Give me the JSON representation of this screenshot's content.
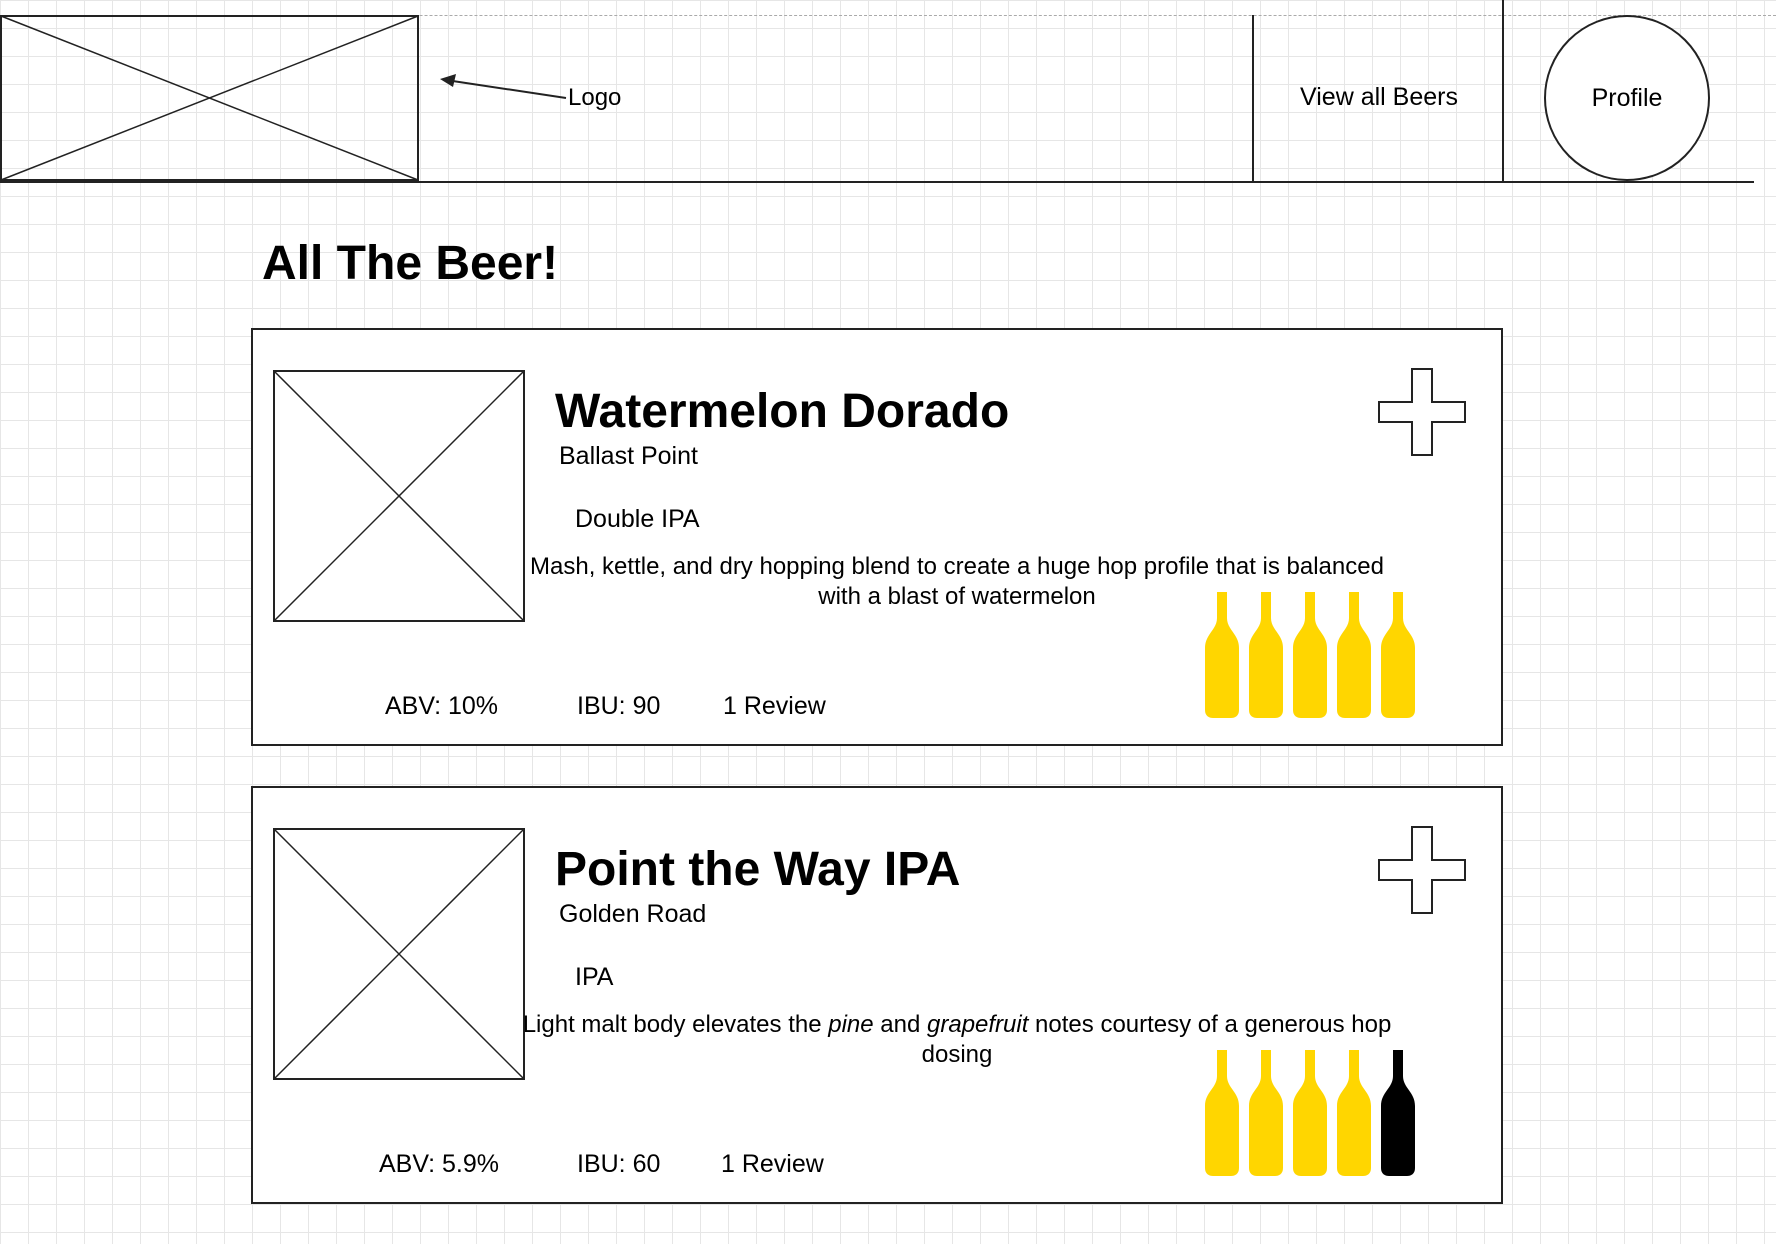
{
  "header": {
    "logo_label": "Logo",
    "nav_link": "View all Beers",
    "profile_label": "Profile"
  },
  "page": {
    "title": "All The Beer!"
  },
  "colors": {
    "rating_filled": "#FFD600",
    "rating_empty": "#000000",
    "grid": "#e6e6e6"
  },
  "beers": [
    {
      "name": "Watermelon Dorado",
      "brewery": "Ballast Point",
      "style": "Double IPA",
      "description": "Mash, kettle, and dry hopping blend to create a huge hop profile that is balanced with a blast of watermelon",
      "abv": "ABV: 10%",
      "ibu": "IBU: 90",
      "reviews": "1 Review",
      "rating": 5,
      "rating_max": 5
    },
    {
      "name": "Point the Way IPA",
      "brewery": "Golden Road",
      "style": "IPA",
      "description_parts": [
        "Light malt body elevates the ",
        "pine",
        " and ",
        "grapefruit",
        " notes courtesy of a generous hop dosing"
      ],
      "abv": "ABV: 5.9%",
      "ibu": "IBU: 60",
      "reviews": "1 Review",
      "rating": 4,
      "rating_max": 5
    }
  ]
}
